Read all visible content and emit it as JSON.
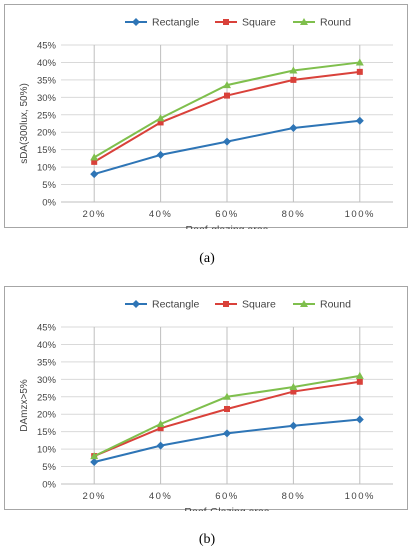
{
  "chart_data": [
    {
      "type": "line",
      "categories": [
        "20%",
        "40%",
        "60%",
        "80%",
        "100%"
      ],
      "series": [
        {
          "name": "Rectangle",
          "color": "#2e75b6",
          "marker": "diamond",
          "values": [
            8.0,
            13.5,
            17.3,
            21.2,
            23.3
          ]
        },
        {
          "name": "Square",
          "color": "#d9413a",
          "marker": "square",
          "values": [
            11.5,
            22.8,
            30.5,
            35.0,
            37.3
          ]
        },
        {
          "name": "Round",
          "color": "#7fbf4d",
          "marker": "triangle",
          "values": [
            12.8,
            24.0,
            33.5,
            37.7,
            40.0
          ]
        }
      ],
      "xlabel": "Roof-glazing area",
      "ylabel": "sDA(300lux, 50%)",
      "ylim": [
        0,
        45
      ],
      "yticks": [
        "0%",
        "5%",
        "10%",
        "15%",
        "20%",
        "25%",
        "30%",
        "35%",
        "40%",
        "45%"
      ],
      "grid": true,
      "legend": "top",
      "caption": "(a)"
    },
    {
      "type": "line",
      "categories": [
        "20%",
        "40%",
        "60%",
        "80%",
        "100%"
      ],
      "series": [
        {
          "name": "Rectangle",
          "color": "#2e75b6",
          "marker": "diamond",
          "values": [
            6.3,
            11.0,
            14.5,
            16.7,
            18.5
          ]
        },
        {
          "name": "Square",
          "color": "#d9413a",
          "marker": "square",
          "values": [
            8.0,
            16.0,
            21.5,
            26.5,
            29.3
          ]
        },
        {
          "name": "Round",
          "color": "#7fbf4d",
          "marker": "triangle",
          "values": [
            8.0,
            17.2,
            25.0,
            27.8,
            31.0
          ]
        }
      ],
      "xlabel": "Roof-Glazing area",
      "ylabel": "DAmzx>5%",
      "ylim": [
        0,
        45
      ],
      "yticks": [
        "0%",
        "5%",
        "10%",
        "15%",
        "20%",
        "25%",
        "30%",
        "35%",
        "40%",
        "45%"
      ],
      "grid": true,
      "legend": "top",
      "caption": "(b)"
    }
  ]
}
